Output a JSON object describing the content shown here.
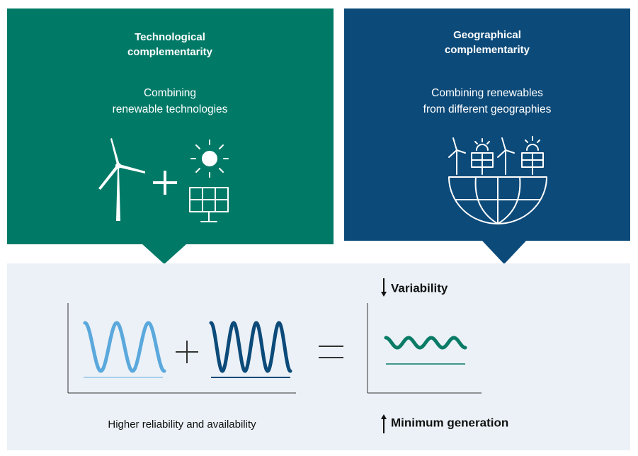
{
  "panels": [
    {
      "title_lines": [
        "Technological",
        "complementarity"
      ],
      "subtitle_lines": [
        "Combining",
        "renewable technologies"
      ]
    },
    {
      "title_lines": [
        "Geographical",
        "complementarity"
      ],
      "subtitle_lines": [
        "Combining renewables",
        "from different geographies"
      ]
    }
  ],
  "result": {
    "decrease": "Variability",
    "increase": "Minimum generation",
    "caption": "Higher reliability and availability"
  }
}
